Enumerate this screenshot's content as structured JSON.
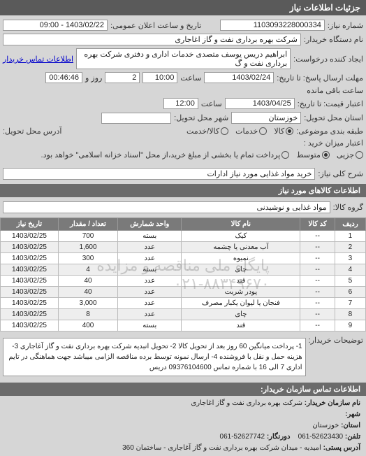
{
  "header": {
    "title": "جزئیات اطلاعات نیاز"
  },
  "info": {
    "request_no_label": "شماره نیاز:",
    "request_no": "1103093228000334",
    "announce_label": "تاریخ و ساعت اعلان عمومی:",
    "announce_value": "1403/02/22 - 09:00",
    "org_label": "نام دستگاه خریدار:",
    "org_value": "شرکت بهره برداری نفت و گاز اغاجاری",
    "requester_label": "ایجاد کننده درخواست:",
    "requester_value": "ابراهیم دریس یوسف متصدی خدمات اداری و دفتری شرکت بهره برداری نفت و گ",
    "contact_link": "اطلاعات تماس خریدار",
    "deadline_label": "مهلت ارسال پاسخ: تا تاریخ:",
    "deadline_date": "1403/02/24",
    "time_label": "ساعت",
    "deadline_time": "10:00",
    "days_label": "روز و",
    "days_value": "2",
    "remain_label": "ساعت باقی مانده",
    "remain_value": "00:46:46",
    "validity_label": "اعتبار قیمت: تا تاریخ:",
    "validity_date": "1403/04/25",
    "validity_time": "12:00",
    "delivery_loc_label": "استان محل تحویل:",
    "delivery_loc_value": "خوزستان",
    "delivery_city_label": "شهر محل تحویل:",
    "delivery_city_value": "",
    "pkg_label": "طبقه بندی موضوعی:",
    "pkg_opts": {
      "kala": "کالا",
      "khadamat": "خدمات",
      "both": "کالا/خدمت"
    },
    "address_label": "آدرس محل تحویل:",
    "importance_label": "اعتبار میزان خرید :",
    "importance_opts": {
      "low": "جزیی",
      "med": "متوسط",
      "high": "پرداخت تمام یا بخشی از مبلغ خرید،از محل \"اسناد خزانه اسلامی\" خواهد بود."
    }
  },
  "need_title": {
    "label": "شرح کلی نیاز:",
    "value": "خرید مواد غذایی مورد نیاز ادارات"
  },
  "goods_header": "اطلاعات کالاهای مورد نیاز",
  "group": {
    "label": "گروه کالا:",
    "value": "مواد غذایی و نوشیدنی"
  },
  "table": {
    "columns": [
      "ردیف",
      "کد کالا",
      "نام کالا",
      "واحد شمارش",
      "تعداد / مقدار",
      "تاریخ نیاز"
    ],
    "rows": [
      [
        "1",
        "--",
        "کیک",
        "بسته",
        "700",
        "1403/02/25"
      ],
      [
        "2",
        "--",
        "آب معدنی یا چشمه",
        "عدد",
        "1,600",
        "1403/02/25"
      ],
      [
        "3",
        "--",
        "نمیوه",
        "عدد",
        "300",
        "1403/02/25"
      ],
      [
        "4",
        "--",
        "چای",
        "بسته",
        "4",
        "1403/02/25"
      ],
      [
        "5",
        "--",
        "قند",
        "عدد",
        "40",
        "1403/02/25"
      ],
      [
        "6",
        "--",
        "پودر شربت",
        "عدد",
        "40",
        "1403/02/25"
      ],
      [
        "7",
        "--",
        "فنجان یا لیوان یکبار مصرف",
        "عدد",
        "3,000",
        "1403/02/25"
      ],
      [
        "8",
        "--",
        "چای",
        "عدد",
        "8",
        "1403/02/25"
      ],
      [
        "9",
        "--",
        "قند",
        "بسته",
        "400",
        "1403/02/25"
      ]
    ],
    "watermark": "پایگاه ملی مناقصه و مزایده",
    "watermark2": "۰۲۱-۸۸۳۴۹۶۷۰"
  },
  "notes": {
    "label": "توضیحات خریدار:",
    "text": "1- پرداخت میانگین 60 روز بعد از تحویل کالا 2- تحویل انبدیه شرکت بهره برداری نفت و گاز آغاجاری 3- هزینه حمل و نقل با فروشنده 4- ارسال نمونه توسط برده مناقصه الزامی میباشد جهت هماهنگی در تایم اداری 7 الی 16 با شماره تماس 09376104600 دریس"
  },
  "footer": {
    "header": "اطلاعات تماس سازمان خریدار:",
    "org_label": "نام سازمان خریدار:",
    "org_value": "شرکت بهره برداری نفت و گاز اغاجاری",
    "city_label": "شهر:",
    "province_label": "استان:",
    "province_value": "خوزستان",
    "phone_label": "تلفن:",
    "phone_value": "52623430-061",
    "fax_label": "دورنگار:",
    "fax_value": "52627742-061",
    "postal_label": "آدرس پستی:",
    "postal_value": "امیدیه - میدان شرکت بهره برداری نفت و گاز آغاجاری - ساختمان 360"
  }
}
